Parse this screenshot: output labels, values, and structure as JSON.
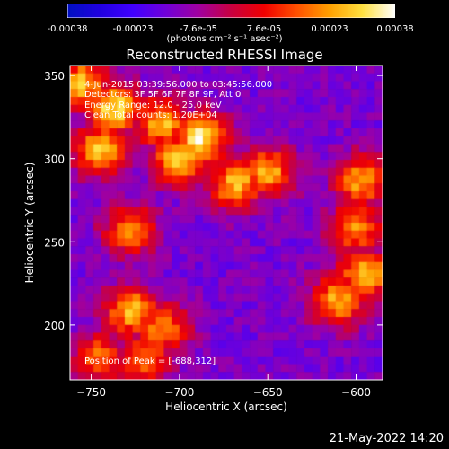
{
  "colorbar": {
    "units_label": "(photons cm⁻² s⁻¹ asec⁻²)",
    "ticks": [
      "-0.00038",
      "-0.00023",
      "-7.6e-05",
      "7.6e-05",
      "0.00023",
      "0.00038"
    ],
    "colormap": [
      "#0010c0",
      "#2000e0",
      "#4000ff",
      "#7000d8",
      "#a000a0",
      "#c80040",
      "#f00000",
      "#ff5000",
      "#ffa000",
      "#ffe040",
      "#ffffff"
    ]
  },
  "title": "Reconstructed RHESSI Image",
  "annotations": {
    "time_range": "4-Jun-2015 03:39:56.000 to 03:45:56.000",
    "detectors": "Detectors: 3F 5F 6F 7F 8F 9F, Att 0",
    "energy_range": "Energy Range: 12.0 - 25.0 keV",
    "clean_counts": "Clean    Total counts: 1.20E+04",
    "peak": "Position of Peak = [-688,312]"
  },
  "footer_date": "21-May-2022 14:20",
  "chart_data": {
    "type": "heatmap",
    "title": "Reconstructed RHESSI Image",
    "xlabel": "Heliocentric X (arcsec)",
    "ylabel": "Heliocentric Y (arcsec)",
    "xlim": [
      -762,
      -585
    ],
    "ylim": [
      167,
      356
    ],
    "xticks": [
      -750,
      -700,
      -650,
      -600
    ],
    "yticks": [
      200,
      250,
      300,
      350
    ],
    "color_range": [
      -0.00038,
      0.00038
    ],
    "hot_sources": [
      {
        "x": -755,
        "y": 345,
        "level": 0.85
      },
      {
        "x": -737,
        "y": 330,
        "level": 0.95
      },
      {
        "x": -710,
        "y": 322,
        "level": 0.85
      },
      {
        "x": -688,
        "y": 312,
        "level": 1.0
      },
      {
        "x": -745,
        "y": 305,
        "level": 0.85
      },
      {
        "x": -700,
        "y": 300,
        "level": 0.9
      },
      {
        "x": -668,
        "y": 285,
        "level": 0.85
      },
      {
        "x": -650,
        "y": 292,
        "level": 0.8
      },
      {
        "x": -728,
        "y": 257,
        "level": 0.7
      },
      {
        "x": -597,
        "y": 287,
        "level": 0.8
      },
      {
        "x": -600,
        "y": 258,
        "level": 0.75
      },
      {
        "x": -595,
        "y": 230,
        "level": 0.85
      },
      {
        "x": -610,
        "y": 215,
        "level": 0.8
      },
      {
        "x": -727,
        "y": 208,
        "level": 0.85
      },
      {
        "x": -710,
        "y": 198,
        "level": 0.75
      },
      {
        "x": -720,
        "y": 180,
        "level": 0.7
      },
      {
        "x": -745,
        "y": 180,
        "level": 0.65
      }
    ],
    "peak_position": [
      -688,
      312
    ]
  }
}
